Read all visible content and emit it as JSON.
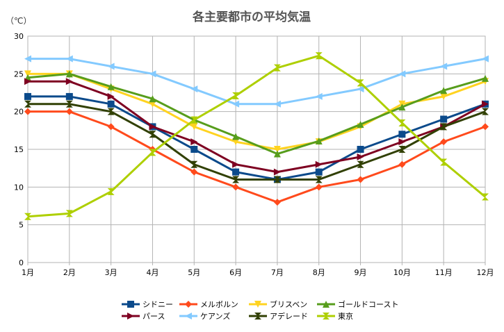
{
  "chart_data": {
    "type": "line",
    "title": "各主要都市の平均気温",
    "ylabel": "（℃）",
    "xlabel": "",
    "categories": [
      "1月",
      "2月",
      "3月",
      "4月",
      "5月",
      "6月",
      "7月",
      "8月",
      "9月",
      "10月",
      "11月",
      "12月"
    ],
    "ylim": [
      0,
      30
    ],
    "yticks": [
      0,
      5,
      10,
      15,
      20,
      25,
      30
    ],
    "grid": true,
    "legend_position": "bottom",
    "series": [
      {
        "name": "シドニー",
        "color": "#0b4a8b",
        "marker": "square",
        "values": [
          22,
          22,
          21,
          18,
          15,
          12,
          11,
          12,
          15,
          17,
          19,
          21
        ]
      },
      {
        "name": "メルボルン",
        "color": "#ff4a1c",
        "marker": "diamond",
        "values": [
          20,
          20,
          18,
          15,
          12,
          10,
          8,
          10,
          11,
          13,
          16,
          18
        ]
      },
      {
        "name": "ブリスベン",
        "color": "#ffd320",
        "marker": "triangle-down",
        "values": [
          25,
          25,
          23,
          21,
          18,
          16,
          15,
          16,
          18,
          21,
          22,
          24
        ]
      },
      {
        "name": "ゴールドコースト",
        "color": "#579d1c",
        "marker": "triangle-up",
        "values": [
          24.5,
          25,
          23.3,
          21.7,
          18.9,
          16.7,
          14.4,
          16.1,
          18.3,
          20.6,
          22.8,
          24.4
        ]
      },
      {
        "name": "パース",
        "color": "#7e0021",
        "marker": "triangle-right",
        "values": [
          24,
          24,
          22,
          18,
          16,
          13,
          12,
          13,
          14,
          16,
          18,
          21
        ]
      },
      {
        "name": "ケアンズ",
        "color": "#83caff",
        "marker": "triangle-left",
        "values": [
          27,
          27,
          26,
          25,
          23,
          21,
          21,
          22,
          23,
          25,
          26,
          27
        ]
      },
      {
        "name": "アデレード",
        "color": "#314004",
        "marker": "bowtie",
        "values": [
          21,
          21,
          20,
          17,
          13,
          11,
          11,
          11,
          13,
          15,
          18,
          20
        ]
      },
      {
        "name": "東京",
        "color": "#aecf00",
        "marker": "hourglass",
        "values": [
          6.1,
          6.5,
          9.4,
          14.6,
          18.9,
          22.1,
          25.8,
          27.4,
          23.8,
          18.5,
          13.3,
          8.7
        ]
      }
    ]
  }
}
